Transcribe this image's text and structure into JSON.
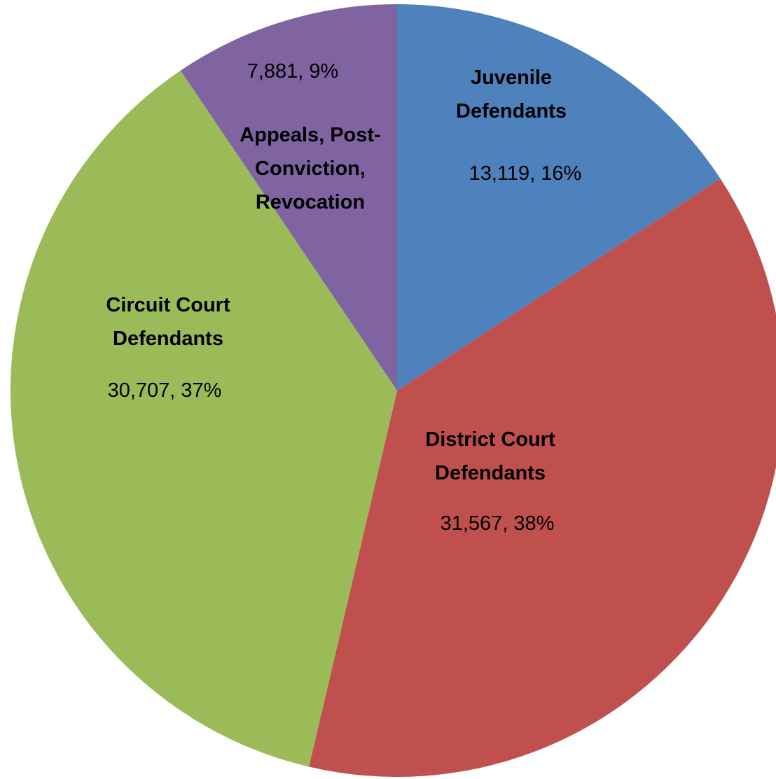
{
  "chart_data": {
    "type": "pie",
    "categories": [
      "Juvenile Defendants",
      "District Court Defendants",
      "Circuit Court Defendants",
      "Appeals, Post-Conviction, Revocation"
    ],
    "values": [
      13119,
      31567,
      30707,
      7881
    ],
    "value_labels": [
      "13,119, 16%",
      "31,567, 38%",
      "30,707, 37%",
      "7,881, 9%"
    ],
    "colors": [
      "#4f81bd",
      "#c0504d",
      "#9bbb59",
      "#8064a2"
    ]
  }
}
